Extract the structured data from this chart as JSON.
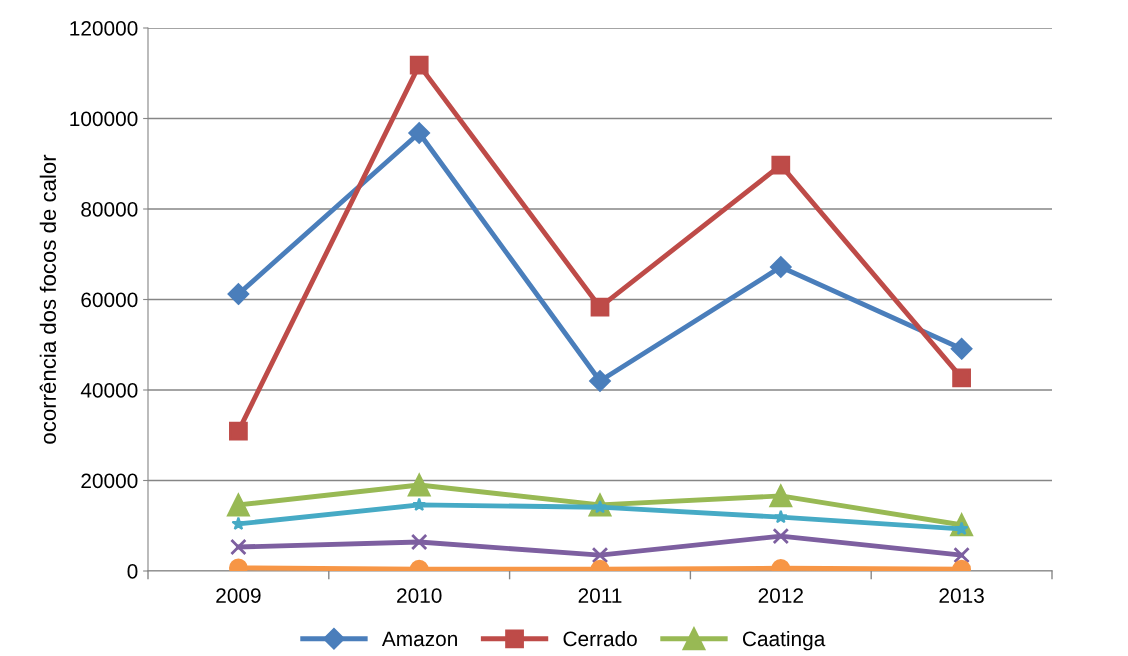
{
  "chart_data": {
    "type": "line",
    "ylabel": "ocorrência dos focos de calor",
    "categories": [
      "2009",
      "2010",
      "2011",
      "2012",
      "2013"
    ],
    "series": [
      {
        "name": "Amazon",
        "color": "#4a7ebb",
        "marker": "diamond",
        "values": [
          61200,
          96800,
          42000,
          67200,
          49100
        ]
      },
      {
        "name": "Cerrado",
        "color": "#be4b48",
        "marker": "square",
        "values": [
          30900,
          111800,
          58300,
          89700,
          42700
        ]
      },
      {
        "name": "Caatinga",
        "color": "#98b954",
        "marker": "triangle",
        "values": [
          14600,
          19000,
          14600,
          16600,
          10200
        ]
      },
      {
        "color": "#7d5fa0",
        "marker": "cross",
        "values": [
          5300,
          6400,
          3500,
          7700,
          3500
        ]
      },
      {
        "color": "#46aac5",
        "marker": "star",
        "values": [
          10400,
          14600,
          14100,
          11900,
          9300
        ]
      },
      {
        "color": "#f79646",
        "marker": "circle",
        "values": [
          700,
          400,
          400,
          600,
          400
        ]
      }
    ],
    "ylim": [
      0,
      120000
    ],
    "yticks": [
      0,
      20000,
      40000,
      60000,
      80000,
      100000,
      120000
    ],
    "grid": "y",
    "legend": "bottom",
    "line_style": "solid"
  }
}
